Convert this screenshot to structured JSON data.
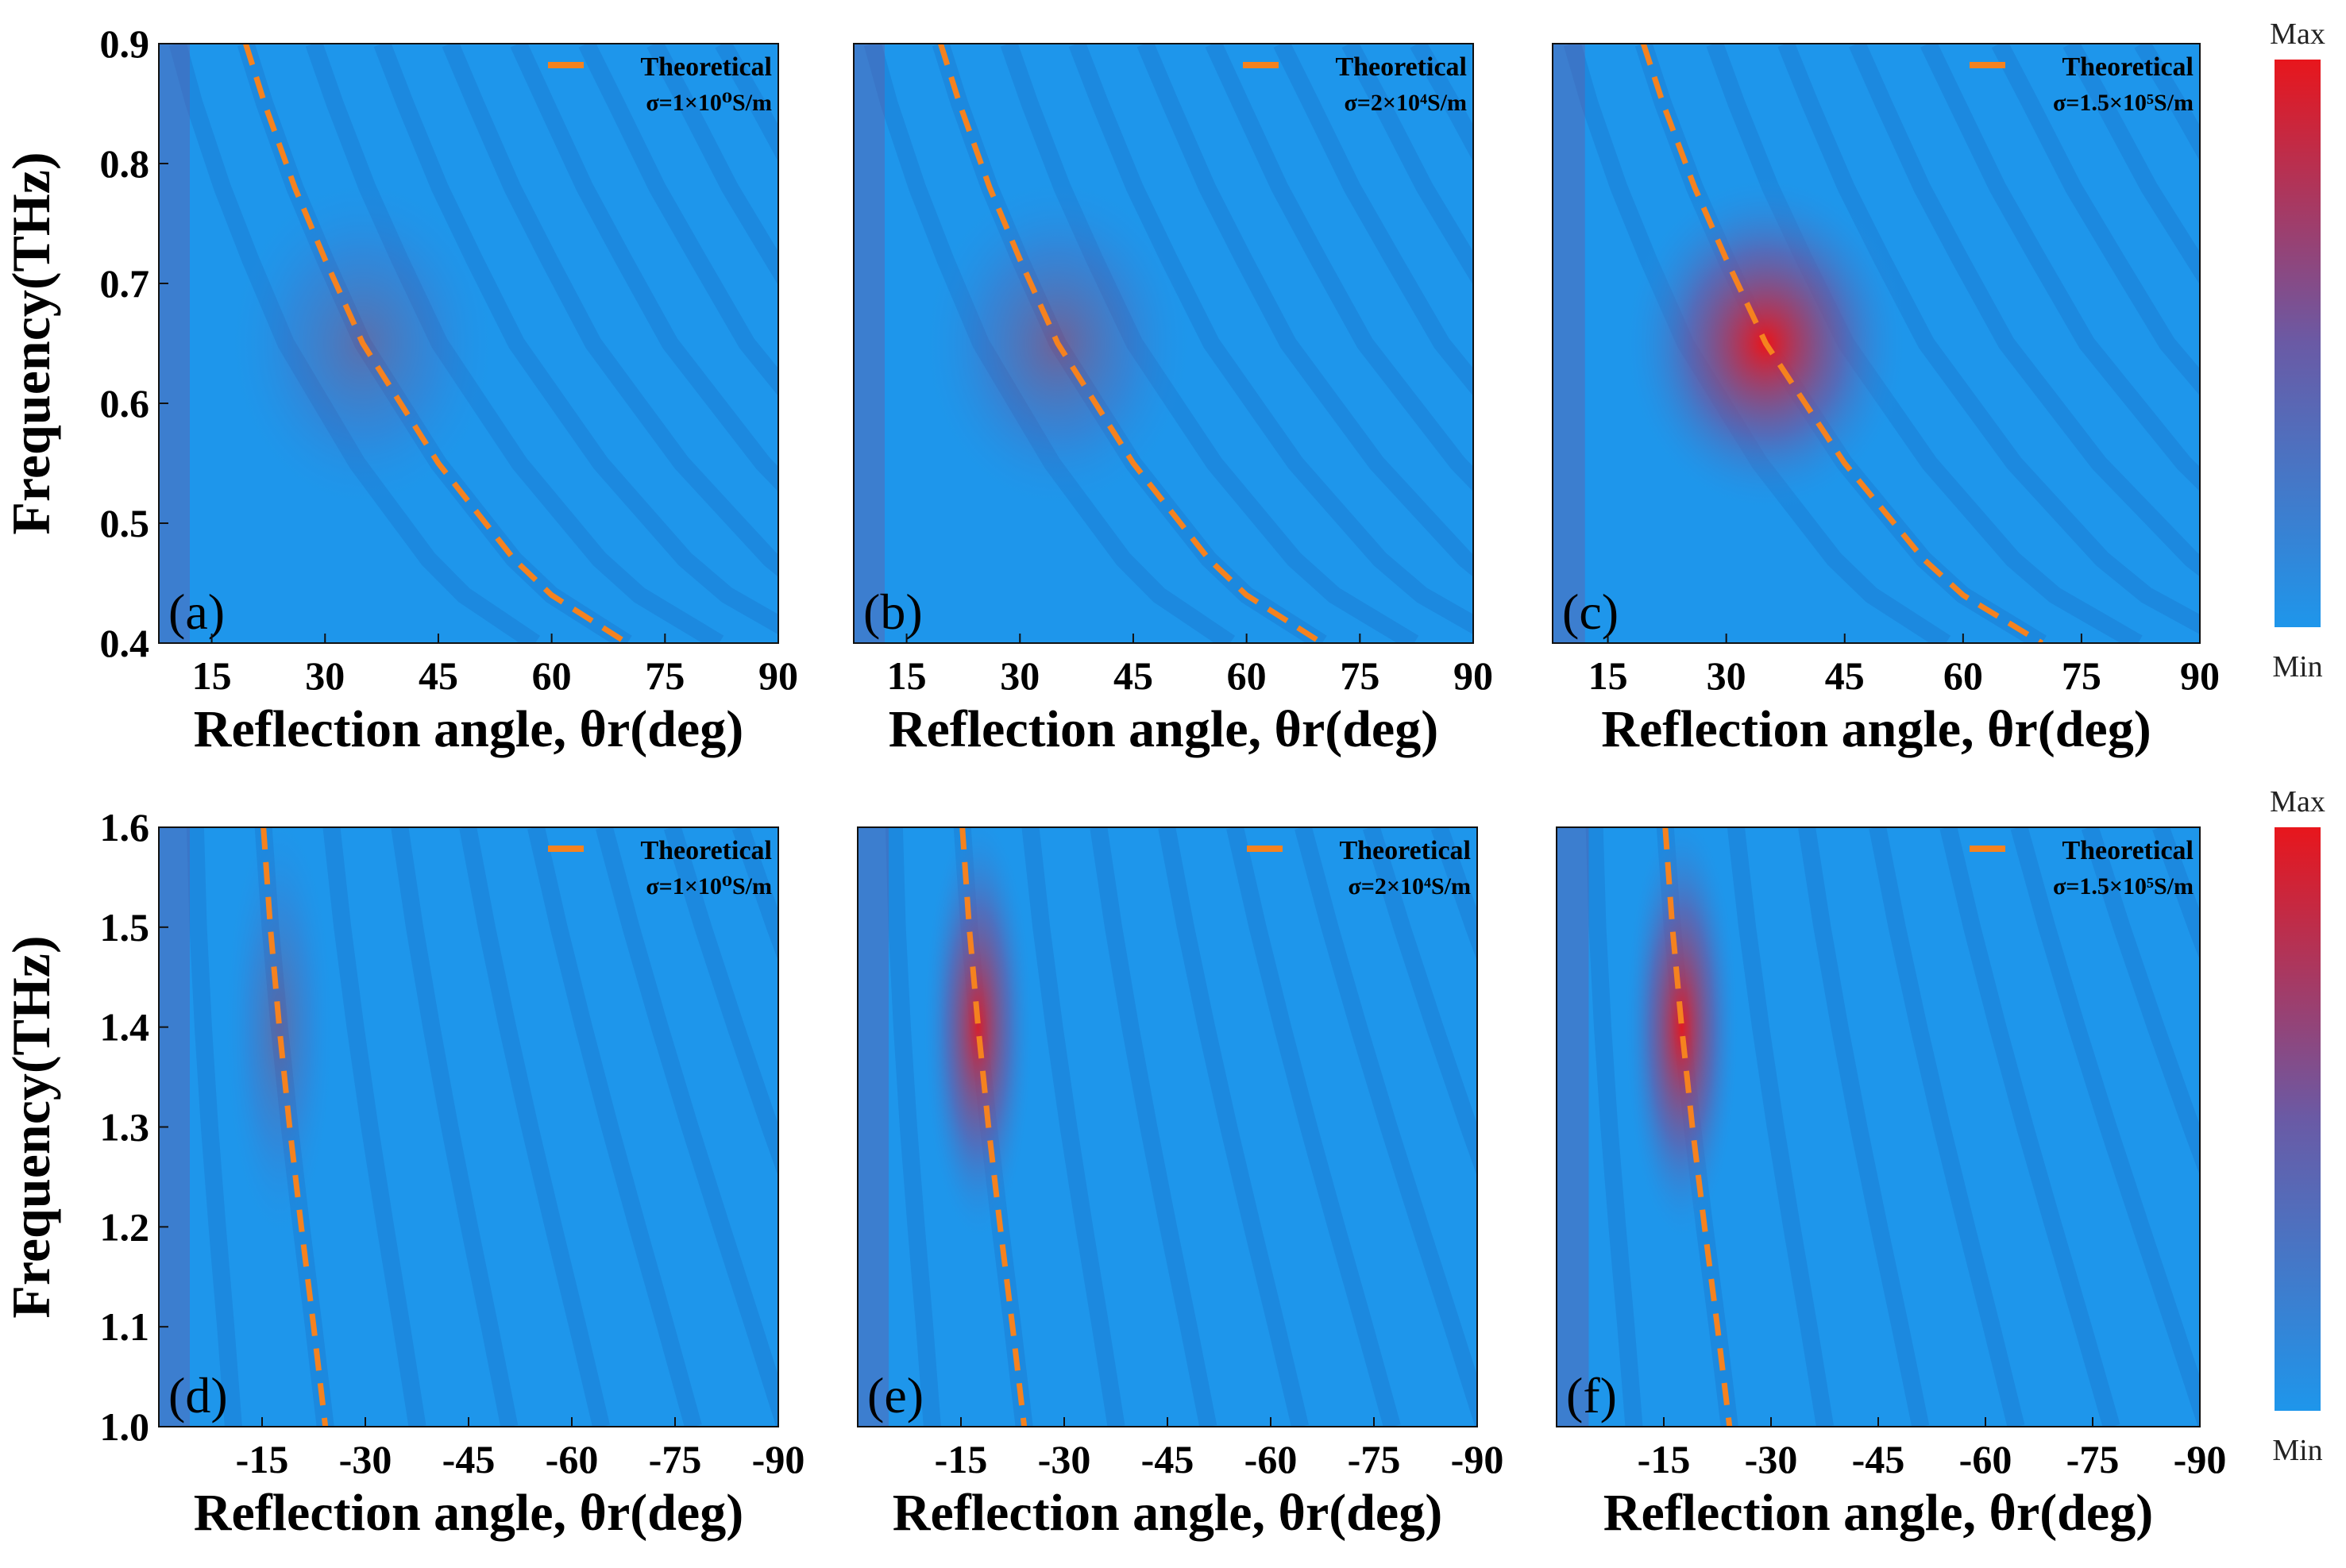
{
  "chart_data": [
    {
      "panel": "(a)",
      "type": "heatmap",
      "xlabel": "Reflection angle, θr(deg)",
      "ylabel": "Frequency(THz)",
      "xlim": [
        8,
        90
      ],
      "ylim": [
        0.4,
        0.9
      ],
      "xticks": [
        "15",
        "30",
        "45",
        "60",
        "75",
        "90"
      ],
      "yticks": [
        "0.4",
        "0.5",
        "0.6",
        "0.7",
        "0.8",
        "0.9"
      ],
      "legend": {
        "label": "Theoretical",
        "sigma": "σ=1×10⁰S/m"
      },
      "theoretical_curve": {
        "x": [
          19.5,
          22,
          26,
          30,
          35,
          40,
          45,
          50,
          55,
          60,
          65,
          70
        ],
        "y": [
          0.9,
          0.85,
          0.78,
          0.72,
          0.65,
          0.6,
          0.55,
          0.51,
          0.47,
          0.44,
          0.42,
          0.4
        ]
      },
      "intensity_peak": 0.3
    },
    {
      "panel": "(b)",
      "type": "heatmap",
      "xlabel": "Reflection angle, θr(deg)",
      "ylabel": "",
      "xlim": [
        8,
        90
      ],
      "ylim": [
        0.4,
        0.9
      ],
      "xticks": [
        "15",
        "30",
        "45",
        "60",
        "75",
        "90"
      ],
      "yticks": [],
      "legend": {
        "label": "Theoretical",
        "sigma": "σ=2×10⁴S/m"
      },
      "theoretical_curve": {
        "x": [
          19.5,
          22,
          26,
          30,
          35,
          40,
          45,
          50,
          55,
          60,
          65,
          70
        ],
        "y": [
          0.9,
          0.85,
          0.78,
          0.72,
          0.65,
          0.6,
          0.55,
          0.51,
          0.47,
          0.44,
          0.42,
          0.4
        ]
      },
      "intensity_peak": 0.4
    },
    {
      "panel": "(c)",
      "type": "heatmap",
      "xlabel": "Reflection angle, θr(deg)",
      "ylabel": "",
      "xlim": [
        8,
        90
      ],
      "ylim": [
        0.4,
        0.9
      ],
      "xticks": [
        "15",
        "30",
        "45",
        "60",
        "75",
        "90"
      ],
      "yticks": [],
      "legend": {
        "label": "Theoretical",
        "sigma": "σ=1.5×10⁵S/m"
      },
      "theoretical_curve": {
        "x": [
          19.5,
          22,
          26,
          30,
          35,
          40,
          45,
          50,
          55,
          60,
          65,
          70
        ],
        "y": [
          0.9,
          0.85,
          0.78,
          0.72,
          0.65,
          0.6,
          0.55,
          0.51,
          0.47,
          0.44,
          0.42,
          0.4
        ]
      },
      "intensity_peak": 1.0
    },
    {
      "panel": "(d)",
      "type": "heatmap",
      "xlabel": "Reflection angle, θr(deg)",
      "ylabel": "Frequency(THz)",
      "xlim": [
        0,
        -90
      ],
      "ylim": [
        1.0,
        1.6
      ],
      "xticks": [
        "-15",
        "-30",
        "-45",
        "-60",
        "-75",
        "-90"
      ],
      "yticks": [
        "1.0",
        "1.1",
        "1.2",
        "1.3",
        "1.4",
        "1.5",
        "1.6"
      ],
      "legend": {
        "label": "Theoretical",
        "sigma": "σ=1×10⁰S/m"
      },
      "theoretical_curve": {
        "x": [
          -15.2,
          -16.2,
          -17.5,
          -19,
          -20.7,
          -22.5,
          -24.2
        ],
        "y": [
          1.6,
          1.5,
          1.4,
          1.3,
          1.2,
          1.1,
          1.0
        ]
      },
      "intensity_peak": 0.3
    },
    {
      "panel": "(e)",
      "type": "heatmap",
      "xlabel": "Reflection angle, θr(deg)",
      "ylabel": "",
      "xlim": [
        0,
        -90
      ],
      "ylim": [
        1.0,
        1.6
      ],
      "xticks": [
        "-15",
        "-30",
        "-45",
        "-60",
        "-75",
        "-90"
      ],
      "yticks": [],
      "legend": {
        "label": "Theoretical",
        "sigma": "σ=2×10⁴S/m"
      },
      "theoretical_curve": {
        "x": [
          -15.2,
          -16.2,
          -17.5,
          -19,
          -20.7,
          -22.5,
          -24.2
        ],
        "y": [
          1.6,
          1.5,
          1.4,
          1.3,
          1.2,
          1.1,
          1.0
        ]
      },
      "intensity_peak": 0.9
    },
    {
      "panel": "(f)",
      "type": "heatmap",
      "xlabel": "Reflection angle, θr(deg)",
      "ylabel": "",
      "xlim": [
        0,
        -90
      ],
      "ylim": [
        1.0,
        1.6
      ],
      "xticks": [
        "-15",
        "-30",
        "-45",
        "-60",
        "-75",
        "-90"
      ],
      "yticks": [],
      "legend": {
        "label": "Theoretical",
        "sigma": "σ=1.5×10⁵S/m"
      },
      "theoretical_curve": {
        "x": [
          -15.2,
          -16.2,
          -17.5,
          -19,
          -20.7,
          -22.5,
          -24.2
        ],
        "y": [
          1.6,
          1.5,
          1.4,
          1.3,
          1.2,
          1.1,
          1.0
        ]
      },
      "intensity_peak": 0.95
    }
  ],
  "colorbars": [
    {
      "max": "Max",
      "min": "Min"
    },
    {
      "max": "Max",
      "min": "Min"
    }
  ],
  "colors": {
    "background": "#1e96eb",
    "peak": "#e8161c",
    "mid": "#6a5aa5",
    "stripe": "#1a72c8",
    "curve": "#f5821f"
  }
}
